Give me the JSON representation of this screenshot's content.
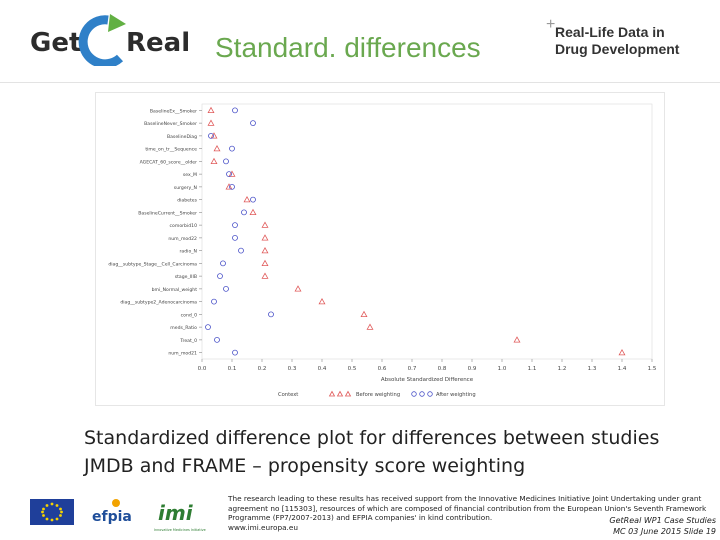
{
  "header": {
    "logo_text_left": "Get",
    "logo_text_right": "Real",
    "title": "Standard. differences",
    "brand_line1": "Real-Life Data in",
    "brand_line2": "Drug Development"
  },
  "chart_data": {
    "type": "scatter",
    "xlabel": "Absolute Standardized Difference",
    "xlim": [
      0.0,
      1.5
    ],
    "xticks": [
      "0.0",
      "0.1",
      "0.2",
      "0.3",
      "0.4",
      "0.5",
      "0.6",
      "0.7",
      "0.8",
      "0.9",
      "1.0",
      "1.1",
      "1.2",
      "1.3",
      "1.4",
      "1.5"
    ],
    "legend_title": "Context",
    "legend_placement": "bottom",
    "colors": {
      "before": "#e05a5a",
      "after": "#4a52c8"
    },
    "categories": [
      "BaselineEx__Smoker",
      "BaselineNever_Smoker",
      "BaselineDiag",
      "time_on_tr__Sequence",
      "AGECAT_60_score__older",
      "sex_M",
      "surgery_N",
      "diabetes",
      "BaselineCurrent__Smoker",
      "comorbid10",
      "num_mod22",
      "radio_N",
      "diag__subtype_Stage__Cell_Carcinoma",
      "stage_IIIB",
      "bmi_Normal_weight",
      "diag__subtype2_Adenocarcinoma",
      "cond_0",
      "meds_Ratio",
      "Treat_0",
      "num_mod21"
    ],
    "series": [
      {
        "name": "Before weighting",
        "marker": "triangle",
        "values": [
          0.03,
          0.03,
          0.04,
          0.05,
          0.04,
          0.1,
          0.09,
          0.15,
          0.17,
          0.21,
          0.21,
          0.21,
          0.21,
          0.21,
          0.32,
          0.4,
          0.54,
          0.56,
          1.05,
          1.4
        ]
      },
      {
        "name": "After weighting",
        "marker": "circle",
        "values": [
          0.11,
          0.17,
          0.03,
          0.1,
          0.08,
          0.09,
          0.1,
          0.17,
          0.14,
          0.11,
          0.11,
          0.13,
          0.07,
          0.06,
          0.08,
          0.04,
          0.23,
          0.02,
          0.05,
          0.11
        ]
      }
    ]
  },
  "caption": {
    "line1": "Standardized difference plot for differences between studies",
    "line2": "JMDB and FRAME – propensity score weighting"
  },
  "footer": {
    "logo_eu": "EU",
    "logo_efpia": "efpia",
    "logo_imi": "imi",
    "logo_imi_sub": "Innovative Medicines Initiative",
    "text_lines": [
      "The research leading to these results has received support from the Innovative Medicines Initiative Joint Undertaking under grant",
      "agreement no [115303], resources of which are composed of financial contribution from the European Union's Seventh Framework",
      "Programme (FP7/2007-2013) and EFPIA companies' in kind contribution.",
      "www.imi.europa.eu"
    ],
    "right_line1": "GetReal WP1 Case Studies",
    "right_line2": "MC 03 June 2015   Slide 19"
  }
}
